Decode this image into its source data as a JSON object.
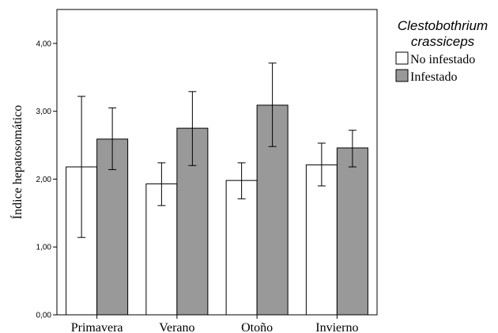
{
  "chart_data": {
    "type": "bar",
    "categories": [
      "Primavera",
      "Verano",
      "Otoño",
      "Invierno"
    ],
    "series": [
      {
        "name": "No infestado",
        "values": [
          2.18,
          1.93,
          1.98,
          2.21
        ],
        "error_low": [
          1.14,
          1.61,
          1.71,
          1.9
        ],
        "error_high": [
          3.22,
          2.24,
          2.24,
          2.53
        ],
        "color": "#ffffff"
      },
      {
        "name": "Infestado",
        "values": [
          2.59,
          2.75,
          3.09,
          2.46
        ],
        "error_low": [
          2.14,
          2.2,
          2.48,
          2.18
        ],
        "error_high": [
          3.05,
          3.29,
          3.71,
          2.72
        ],
        "color": "#999999"
      }
    ],
    "ylabel": "Índice hepatosomático",
    "xlabel": "",
    "ylim": [
      0,
      4.5
    ],
    "yticks": [
      0,
      1,
      2,
      3,
      4
    ],
    "ytick_labels": [
      "0,00",
      "1,00",
      "2,00",
      "3,00",
      "4,00"
    ],
    "legend": {
      "title_line1": "Clestobothrium",
      "title_line2": "crassiceps",
      "placement": "right"
    },
    "grid": false
  }
}
